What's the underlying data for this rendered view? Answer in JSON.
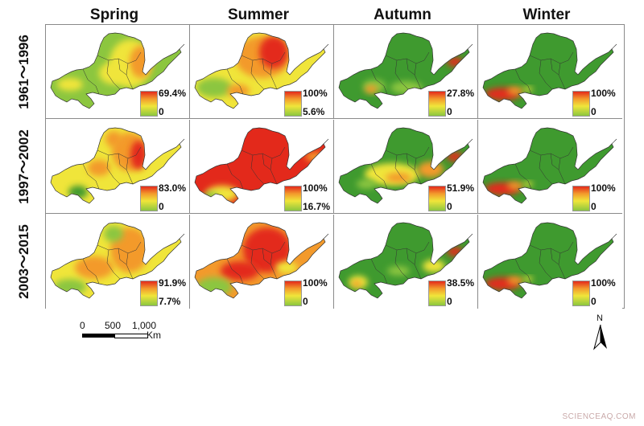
{
  "seasons": [
    "Spring",
    "Summer",
    "Autumn",
    "Winter"
  ],
  "periods": [
    "1961～1996",
    "1997～2002",
    "2003～2015"
  ],
  "panels": [
    [
      {
        "max": "69.4%",
        "min": "0",
        "pattern": "spring_1"
      },
      {
        "max": "100%",
        "min": "5.6%",
        "pattern": "summer_1"
      },
      {
        "max": "27.8%",
        "min": "0",
        "pattern": "autumn_1"
      },
      {
        "max": "100%",
        "min": "0",
        "pattern": "winter"
      }
    ],
    [
      {
        "max": "83.0%",
        "min": "0",
        "pattern": "spring_2"
      },
      {
        "max": "100%",
        "min": "16.7%",
        "pattern": "summer_2"
      },
      {
        "max": "51.9%",
        "min": "0",
        "pattern": "autumn_2"
      },
      {
        "max": "100%",
        "min": "0",
        "pattern": "winter"
      }
    ],
    [
      {
        "max": "91.9%",
        "min": "7.7%",
        "pattern": "spring_3"
      },
      {
        "max": "100%",
        "min": "0",
        "pattern": "summer_3"
      },
      {
        "max": "38.5%",
        "min": "0",
        "pattern": "autumn_3"
      },
      {
        "max": "100%",
        "min": "0",
        "pattern": "winter"
      }
    ]
  ],
  "scale": {
    "ticks": [
      "0",
      "500",
      "1,000"
    ],
    "unit": "Km"
  },
  "north_label": "N",
  "watermark": "SCIENCEAQ.COM",
  "colors": {
    "green": "#3f9a2f",
    "lightgreen": "#8cc63f",
    "yellow": "#f0e53a",
    "orange": "#f39a2c",
    "red": "#e3291b",
    "border": "#333333"
  }
}
